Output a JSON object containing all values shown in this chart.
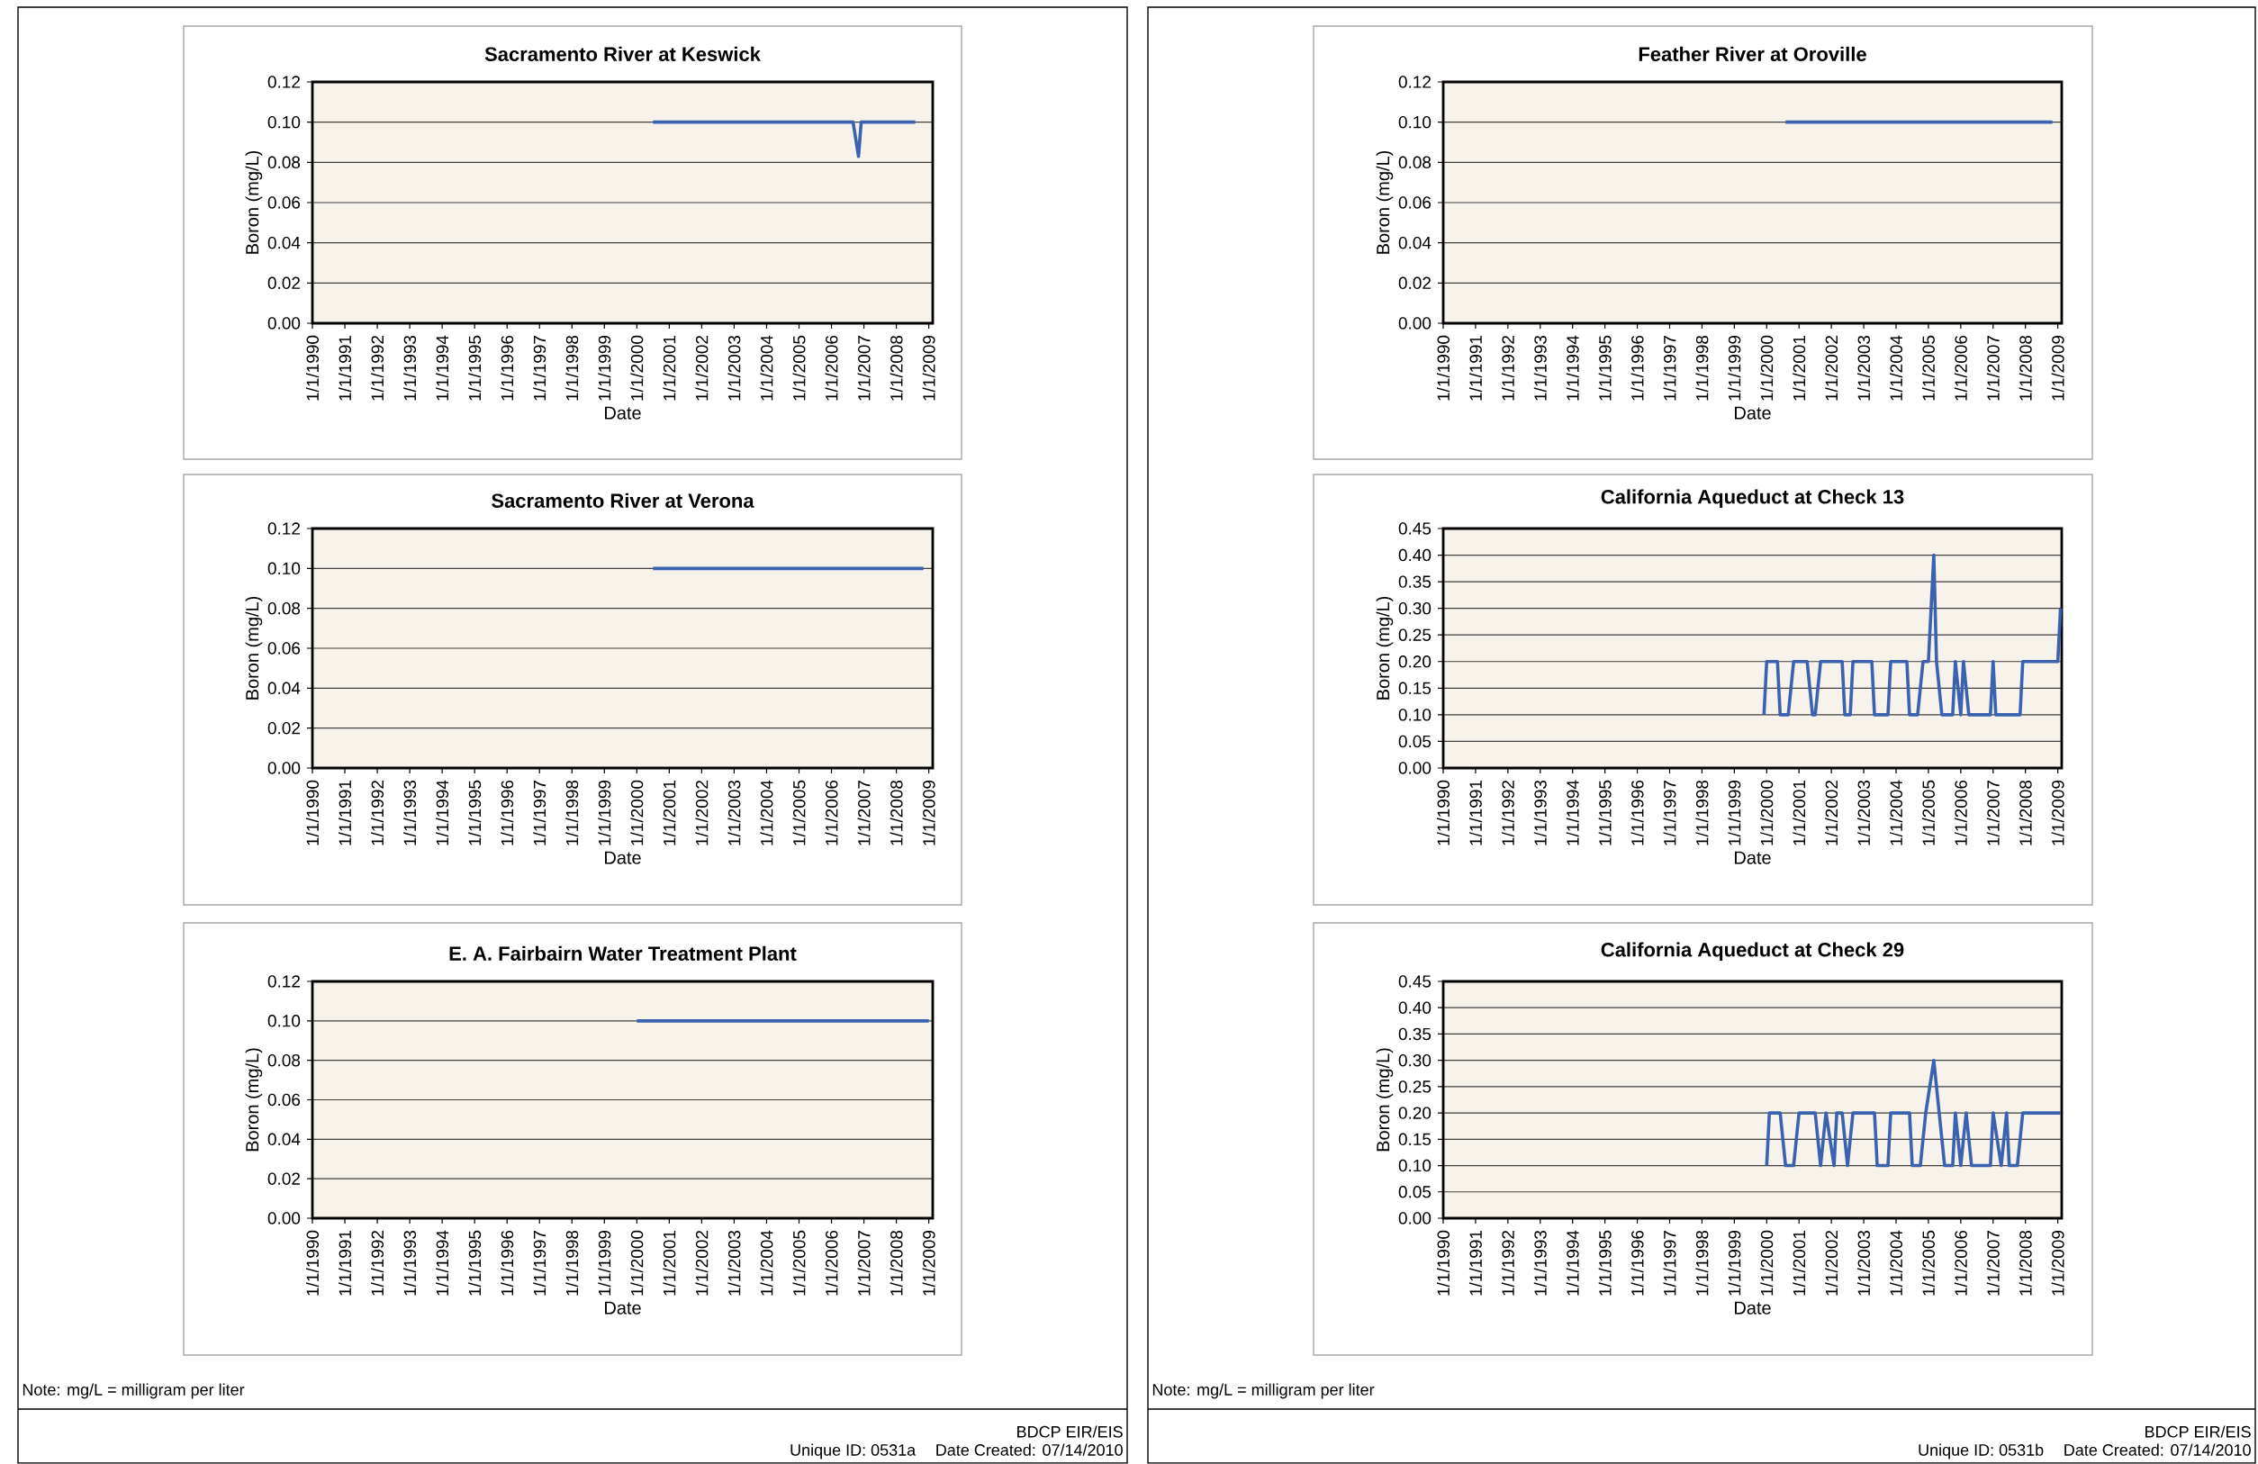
{
  "chart_data": [
    {
      "type": "line",
      "title": "Sacramento River at Keswick",
      "xlabel": "Date",
      "ylabel": "Boron (mg/L)",
      "color": "#3a62b0",
      "grid": "y",
      "x": [
        "2000-07",
        "2006-09",
        "2006-11",
        "2006-12",
        "2008-08"
      ],
      "values": [
        0.1,
        0.1,
        0.083,
        0.1,
        0.1
      ],
      "xlim": [
        "1990-01-01",
        "2009-02-15"
      ],
      "ylim": [
        0,
        0.12
      ],
      "xticks": [
        {
          "value": "1990-01-01",
          "label": "1/1/1990"
        },
        {
          "value": "1991-01-01",
          "label": "1/1/1991"
        },
        {
          "value": "1992-01-01",
          "label": "1/1/1992"
        },
        {
          "value": "1993-01-01",
          "label": "1/1/1993"
        },
        {
          "value": "1994-01-01",
          "label": "1/1/1994"
        },
        {
          "value": "1995-01-01",
          "label": "1/1/1995"
        },
        {
          "value": "1996-01-01",
          "label": "1/1/1996"
        },
        {
          "value": "1997-01-01",
          "label": "1/1/1997"
        },
        {
          "value": "1998-01-01",
          "label": "1/1/1998"
        },
        {
          "value": "1999-01-01",
          "label": "1/1/1999"
        },
        {
          "value": "2000-01-01",
          "label": "1/1/2000"
        },
        {
          "value": "2001-01-01",
          "label": "1/1/2001"
        },
        {
          "value": "2002-01-01",
          "label": "1/1/2002"
        },
        {
          "value": "2003-01-01",
          "label": "1/1/2003"
        },
        {
          "value": "2004-01-01",
          "label": "1/1/2004"
        },
        {
          "value": "2005-01-01",
          "label": "1/1/2005"
        },
        {
          "value": "2006-01-01",
          "label": "1/1/2006"
        },
        {
          "value": "2007-01-01",
          "label": "1/1/2007"
        },
        {
          "value": "2008-01-01",
          "label": "1/1/2008"
        },
        {
          "value": "2009-01-01",
          "label": "1/1/2009"
        }
      ],
      "yticks": [
        {
          "value": 0,
          "label": "0.00"
        },
        {
          "value": 0.02,
          "label": "0.02"
        },
        {
          "value": 0.04,
          "label": "0.04"
        },
        {
          "value": 0.06,
          "label": "0.06"
        },
        {
          "value": 0.08,
          "label": "0.08"
        },
        {
          "value": 0.1,
          "label": "0.10"
        },
        {
          "value": 0.12,
          "label": "0.12"
        }
      ]
    },
    {
      "type": "line",
      "title": "Sacramento River at Verona",
      "xlabel": "Date",
      "ylabel": "Boron (mg/L)",
      "color": "#3a62b0",
      "grid": "y",
      "x": [
        "2000-07",
        "2008-11"
      ],
      "values": [
        0.1,
        0.1
      ],
      "xlim": [
        "1990-01-01",
        "2009-02-15"
      ],
      "ylim": [
        0,
        0.12
      ],
      "xticks": [
        {
          "value": "1990-01-01",
          "label": "1/1/1990"
        },
        {
          "value": "1991-01-01",
          "label": "1/1/1991"
        },
        {
          "value": "1992-01-01",
          "label": "1/1/1992"
        },
        {
          "value": "1993-01-01",
          "label": "1/1/1993"
        },
        {
          "value": "1994-01-01",
          "label": "1/1/1994"
        },
        {
          "value": "1995-01-01",
          "label": "1/1/1995"
        },
        {
          "value": "1996-01-01",
          "label": "1/1/1996"
        },
        {
          "value": "1997-01-01",
          "label": "1/1/1997"
        },
        {
          "value": "1998-01-01",
          "label": "1/1/1998"
        },
        {
          "value": "1999-01-01",
          "label": "1/1/1999"
        },
        {
          "value": "2000-01-01",
          "label": "1/1/2000"
        },
        {
          "value": "2001-01-01",
          "label": "1/1/2001"
        },
        {
          "value": "2002-01-01",
          "label": "1/1/2002"
        },
        {
          "value": "2003-01-01",
          "label": "1/1/2003"
        },
        {
          "value": "2004-01-01",
          "label": "1/1/2004"
        },
        {
          "value": "2005-01-01",
          "label": "1/1/2005"
        },
        {
          "value": "2006-01-01",
          "label": "1/1/2006"
        },
        {
          "value": "2007-01-01",
          "label": "1/1/2007"
        },
        {
          "value": "2008-01-01",
          "label": "1/1/2008"
        },
        {
          "value": "2009-01-01",
          "label": "1/1/2009"
        }
      ],
      "yticks": [
        {
          "value": 0,
          "label": "0.00"
        },
        {
          "value": 0.02,
          "label": "0.02"
        },
        {
          "value": 0.04,
          "label": "0.04"
        },
        {
          "value": 0.06,
          "label": "0.06"
        },
        {
          "value": 0.08,
          "label": "0.08"
        },
        {
          "value": 0.1,
          "label": "0.10"
        },
        {
          "value": 0.12,
          "label": "0.12"
        }
      ]
    },
    {
      "type": "line",
      "title": "E. A. Fairbairn Water Treatment Plant",
      "xlabel": "Date",
      "ylabel": "Boron (mg/L)",
      "color": "#3a62b0",
      "grid": "y",
      "x": [
        "2000-01",
        "2009-01"
      ],
      "values": [
        0.1,
        0.1
      ],
      "xlim": [
        "1990-01-01",
        "2009-02-15"
      ],
      "ylim": [
        0,
        0.12
      ],
      "xticks": [
        {
          "value": "1990-01-01",
          "label": "1/1/1990"
        },
        {
          "value": "1991-01-01",
          "label": "1/1/1991"
        },
        {
          "value": "1992-01-01",
          "label": "1/1/1992"
        },
        {
          "value": "1993-01-01",
          "label": "1/1/1993"
        },
        {
          "value": "1994-01-01",
          "label": "1/1/1994"
        },
        {
          "value": "1995-01-01",
          "label": "1/1/1995"
        },
        {
          "value": "1996-01-01",
          "label": "1/1/1996"
        },
        {
          "value": "1997-01-01",
          "label": "1/1/1997"
        },
        {
          "value": "1998-01-01",
          "label": "1/1/1998"
        },
        {
          "value": "1999-01-01",
          "label": "1/1/1999"
        },
        {
          "value": "2000-01-01",
          "label": "1/1/2000"
        },
        {
          "value": "2001-01-01",
          "label": "1/1/2001"
        },
        {
          "value": "2002-01-01",
          "label": "1/1/2002"
        },
        {
          "value": "2003-01-01",
          "label": "1/1/2003"
        },
        {
          "value": "2004-01-01",
          "label": "1/1/2004"
        },
        {
          "value": "2005-01-01",
          "label": "1/1/2005"
        },
        {
          "value": "2006-01-01",
          "label": "1/1/2006"
        },
        {
          "value": "2007-01-01",
          "label": "1/1/2007"
        },
        {
          "value": "2008-01-01",
          "label": "1/1/2008"
        },
        {
          "value": "2009-01-01",
          "label": "1/1/2009"
        }
      ],
      "yticks": [
        {
          "value": 0,
          "label": "0.00"
        },
        {
          "value": 0.02,
          "label": "0.02"
        },
        {
          "value": 0.04,
          "label": "0.04"
        },
        {
          "value": 0.06,
          "label": "0.06"
        },
        {
          "value": 0.08,
          "label": "0.08"
        },
        {
          "value": 0.1,
          "label": "0.10"
        },
        {
          "value": 0.12,
          "label": "0.12"
        }
      ],
      "annotations": [
        "Note: mg/L = milligram per liter",
        "BDCP EIR/EIS",
        "Unique ID: 0531a",
        "Date Created: 07/14/2010"
      ]
    },
    {
      "type": "line",
      "title": "Feather River at Oroville",
      "xlabel": "Date",
      "ylabel": "Boron (mg/L)",
      "color": "#3a62b0",
      "grid": "y",
      "x": [
        "2000-08",
        "2008-11"
      ],
      "values": [
        0.1,
        0.1
      ],
      "xlim": [
        "1990-01-01",
        "2009-02-15"
      ],
      "ylim": [
        0,
        0.12
      ],
      "xticks": [
        {
          "value": "1990-01-01",
          "label": "1/1/1990"
        },
        {
          "value": "1991-01-01",
          "label": "1/1/1991"
        },
        {
          "value": "1992-01-01",
          "label": "1/1/1992"
        },
        {
          "value": "1993-01-01",
          "label": "1/1/1993"
        },
        {
          "value": "1994-01-01",
          "label": "1/1/1994"
        },
        {
          "value": "1995-01-01",
          "label": "1/1/1995"
        },
        {
          "value": "1996-01-01",
          "label": "1/1/1996"
        },
        {
          "value": "1997-01-01",
          "label": "1/1/1997"
        },
        {
          "value": "1998-01-01",
          "label": "1/1/1998"
        },
        {
          "value": "1999-01-01",
          "label": "1/1/1999"
        },
        {
          "value": "2000-01-01",
          "label": "1/1/2000"
        },
        {
          "value": "2001-01-01",
          "label": "1/1/2001"
        },
        {
          "value": "2002-01-01",
          "label": "1/1/2002"
        },
        {
          "value": "2003-01-01",
          "label": "1/1/2003"
        },
        {
          "value": "2004-01-01",
          "label": "1/1/2004"
        },
        {
          "value": "2005-01-01",
          "label": "1/1/2005"
        },
        {
          "value": "2006-01-01",
          "label": "1/1/2006"
        },
        {
          "value": "2007-01-01",
          "label": "1/1/2007"
        },
        {
          "value": "2008-01-01",
          "label": "1/1/2008"
        },
        {
          "value": "2009-01-01",
          "label": "1/1/2009"
        }
      ],
      "yticks": [
        {
          "value": 0,
          "label": "0.00"
        },
        {
          "value": 0.02,
          "label": "0.02"
        },
        {
          "value": 0.04,
          "label": "0.04"
        },
        {
          "value": 0.06,
          "label": "0.06"
        },
        {
          "value": 0.08,
          "label": "0.08"
        },
        {
          "value": 0.1,
          "label": "0.10"
        },
        {
          "value": 0.12,
          "label": "0.12"
        }
      ]
    },
    {
      "type": "line",
      "title": "California Aqueduct at Check 13",
      "xlabel": "Date",
      "ylabel": "Boron (mg/L)",
      "color": "#3a62b0",
      "grid": "y",
      "x": [
        "1999-12",
        "2000-01",
        "2000-05",
        "2000-06",
        "2000-09",
        "2000-11",
        "2001-04",
        "2001-06",
        "2001-07",
        "2001-09",
        "2002-05",
        "2002-06",
        "2002-08",
        "2002-09",
        "2003-04",
        "2003-05",
        "2003-10",
        "2003-11",
        "2004-05",
        "2004-06",
        "2004-09",
        "2004-11",
        "2005-01",
        "2005-03",
        "2005-04",
        "2005-06",
        "2005-10",
        "2005-11",
        "2006-01",
        "2006-02",
        "2006-04",
        "2006-12",
        "2007-01",
        "2007-02",
        "2007-11",
        "2007-12",
        "2009-01",
        "2009-02"
      ],
      "values": [
        0.1,
        0.2,
        0.2,
        0.1,
        0.1,
        0.2,
        0.2,
        0.1,
        0.1,
        0.2,
        0.2,
        0.1,
        0.1,
        0.2,
        0.2,
        0.1,
        0.1,
        0.2,
        0.2,
        0.1,
        0.1,
        0.2,
        0.2,
        0.4,
        0.2,
        0.1,
        0.1,
        0.2,
        0.1,
        0.2,
        0.1,
        0.1,
        0.2,
        0.1,
        0.1,
        0.2,
        0.2,
        0.3
      ],
      "xlim": [
        "1990-01-01",
        "2009-02-15"
      ],
      "ylim": [
        0,
        0.45
      ],
      "xticks": [
        {
          "value": "1990-01-01",
          "label": "1/1/1990"
        },
        {
          "value": "1991-01-01",
          "label": "1/1/1991"
        },
        {
          "value": "1992-01-01",
          "label": "1/1/1992"
        },
        {
          "value": "1993-01-01",
          "label": "1/1/1993"
        },
        {
          "value": "1994-01-01",
          "label": "1/1/1994"
        },
        {
          "value": "1995-01-01",
          "label": "1/1/1995"
        },
        {
          "value": "1996-01-01",
          "label": "1/1/1996"
        },
        {
          "value": "1997-01-01",
          "label": "1/1/1997"
        },
        {
          "value": "1998-01-01",
          "label": "1/1/1998"
        },
        {
          "value": "1999-01-01",
          "label": "1/1/1999"
        },
        {
          "value": "2000-01-01",
          "label": "1/1/2000"
        },
        {
          "value": "2001-01-01",
          "label": "1/1/2001"
        },
        {
          "value": "2002-01-01",
          "label": "1/1/2002"
        },
        {
          "value": "2003-01-01",
          "label": "1/1/2003"
        },
        {
          "value": "2004-01-01",
          "label": "1/1/2004"
        },
        {
          "value": "2005-01-01",
          "label": "1/1/2005"
        },
        {
          "value": "2006-01-01",
          "label": "1/1/2006"
        },
        {
          "value": "2007-01-01",
          "label": "1/1/2007"
        },
        {
          "value": "2008-01-01",
          "label": "1/1/2008"
        },
        {
          "value": "2009-01-01",
          "label": "1/1/2009"
        }
      ],
      "yticks": [
        {
          "value": 0,
          "label": "0.00"
        },
        {
          "value": 0.05,
          "label": "0.05"
        },
        {
          "value": 0.1,
          "label": "0.10"
        },
        {
          "value": 0.15,
          "label": "0.15"
        },
        {
          "value": 0.2,
          "label": "0.20"
        },
        {
          "value": 0.25,
          "label": "0.25"
        },
        {
          "value": 0.3,
          "label": "0.30"
        },
        {
          "value": 0.35,
          "label": "0.35"
        },
        {
          "value": 0.4,
          "label": "0.40"
        },
        {
          "value": 0.45,
          "label": "0.45"
        }
      ]
    },
    {
      "type": "line",
      "title": "California Aqueduct at Check 29",
      "xlabel": "Date",
      "ylabel": "Boron (mg/L)",
      "color": "#3a62b0",
      "grid": "y",
      "x": [
        "2000-01",
        "2000-02",
        "2000-06",
        "2000-08",
        "2000-11",
        "2001-01",
        "2001-07",
        "2001-09",
        "2001-11",
        "2002-02",
        "2002-03",
        "2002-05",
        "2002-07",
        "2002-09",
        "2003-05",
        "2003-06",
        "2003-10",
        "2003-11",
        "2004-06",
        "2004-07",
        "2004-10",
        "2004-12",
        "2005-03",
        "2005-05",
        "2005-07",
        "2005-10",
        "2005-11",
        "2006-01",
        "2006-03",
        "2006-05",
        "2006-12",
        "2007-01",
        "2007-04",
        "2007-06",
        "2007-07",
        "2007-10",
        "2007-12",
        "2009-02"
      ],
      "values": [
        0.1,
        0.2,
        0.2,
        0.1,
        0.1,
        0.2,
        0.2,
        0.1,
        0.2,
        0.1,
        0.2,
        0.2,
        0.1,
        0.2,
        0.2,
        0.1,
        0.1,
        0.2,
        0.2,
        0.1,
        0.1,
        0.2,
        0.3,
        0.2,
        0.1,
        0.1,
        0.2,
        0.1,
        0.2,
        0.1,
        0.1,
        0.2,
        0.1,
        0.2,
        0.1,
        0.1,
        0.2,
        0.2
      ],
      "xlim": [
        "1990-01-01",
        "2009-02-15"
      ],
      "ylim": [
        0,
        0.45
      ],
      "xticks": [
        {
          "value": "1990-01-01",
          "label": "1/1/1990"
        },
        {
          "value": "1991-01-01",
          "label": "1/1/1991"
        },
        {
          "value": "1992-01-01",
          "label": "1/1/1992"
        },
        {
          "value": "1993-01-01",
          "label": "1/1/1993"
        },
        {
          "value": "1994-01-01",
          "label": "1/1/1994"
        },
        {
          "value": "1995-01-01",
          "label": "1/1/1995"
        },
        {
          "value": "1996-01-01",
          "label": "1/1/1996"
        },
        {
          "value": "1997-01-01",
          "label": "1/1/1997"
        },
        {
          "value": "1998-01-01",
          "label": "1/1/1998"
        },
        {
          "value": "1999-01-01",
          "label": "1/1/1999"
        },
        {
          "value": "2000-01-01",
          "label": "1/1/2000"
        },
        {
          "value": "2001-01-01",
          "label": "1/1/2001"
        },
        {
          "value": "2002-01-01",
          "label": "1/1/2002"
        },
        {
          "value": "2003-01-01",
          "label": "1/1/2003"
        },
        {
          "value": "2004-01-01",
          "label": "1/1/2004"
        },
        {
          "value": "2005-01-01",
          "label": "1/1/2005"
        },
        {
          "value": "2006-01-01",
          "label": "1/1/2006"
        },
        {
          "value": "2007-01-01",
          "label": "1/1/2007"
        },
        {
          "value": "2008-01-01",
          "label": "1/1/2008"
        },
        {
          "value": "2009-01-01",
          "label": "1/1/2009"
        }
      ],
      "yticks": [
        {
          "value": 0,
          "label": "0.00"
        },
        {
          "value": 0.05,
          "label": "0.05"
        },
        {
          "value": 0.1,
          "label": "0.10"
        },
        {
          "value": 0.15,
          "label": "0.15"
        },
        {
          "value": 0.2,
          "label": "0.20"
        },
        {
          "value": 0.25,
          "label": "0.25"
        },
        {
          "value": 0.3,
          "label": "0.30"
        },
        {
          "value": 0.35,
          "label": "0.35"
        },
        {
          "value": 0.4,
          "label": "0.40"
        },
        {
          "value": 0.45,
          "label": "0.45"
        }
      ],
      "annotations": [
        "Note: mg/L = milligram per liter",
        "BDCP EIR/EIS",
        "Unique ID: 0531b",
        "Date Created: 07/14/2010"
      ]
    }
  ]
}
